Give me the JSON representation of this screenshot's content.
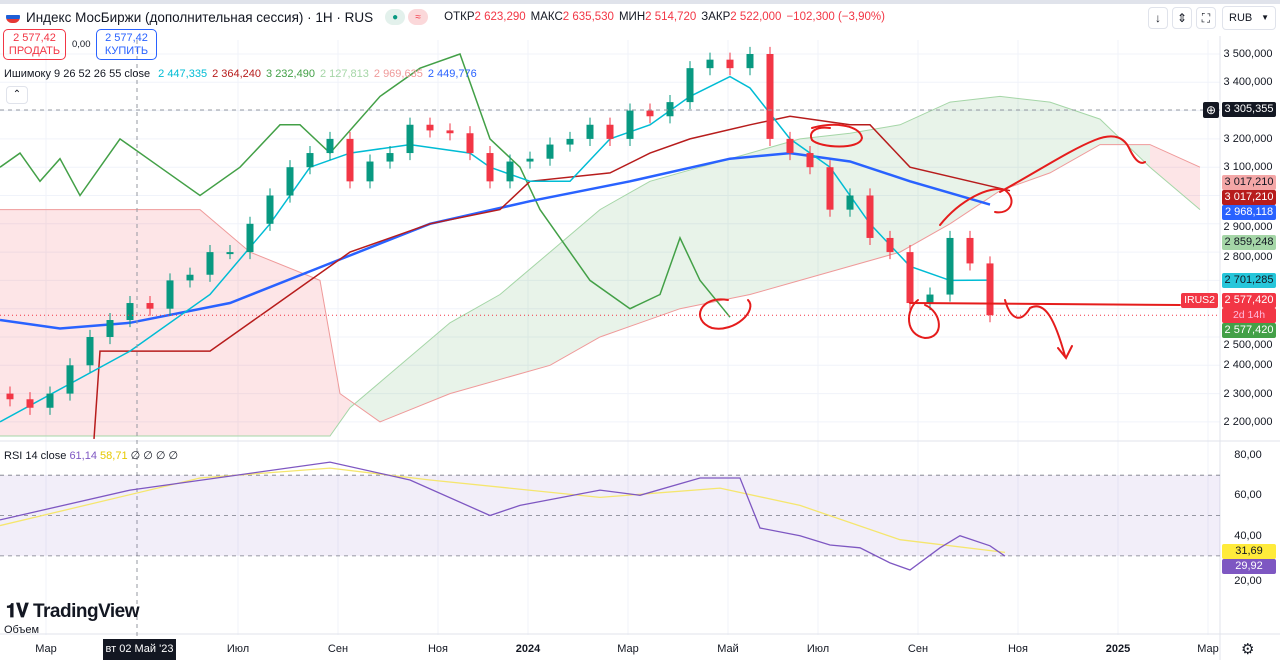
{
  "header": {
    "title": "Индекс МосБиржи (дополнительная сессия) · 1H · RUS",
    "ohlc": [
      {
        "label": "ОТКР",
        "value": "2 623,290"
      },
      {
        "label": "МАКС",
        "value": "2 635,530"
      },
      {
        "label": "МИН",
        "value": "2 514,720"
      },
      {
        "label": "ЗАКР",
        "value": "2 522,000"
      }
    ],
    "change": "−102,300 (−3,90%)",
    "sell_price": "2 577,42",
    "sell_label": "ПРОДАТЬ",
    "spread": "0,00",
    "buy_price": "2 577,42",
    "buy_label": "КУПИТЬ",
    "currency": "RUB"
  },
  "legend": {
    "name": "Ишимоку 9 26 52 26 55 close",
    "values": [
      {
        "v": "2 447,335",
        "color": "#00bcd4"
      },
      {
        "v": "2 364,240",
        "color": "#b71c1c"
      },
      {
        "v": "3 232,490",
        "color": "#43a047"
      },
      {
        "v": "2 127,813",
        "color": "#a5d6a7"
      },
      {
        "v": "2 969,635",
        "color": "#ef9a9a"
      },
      {
        "v": "2 449,776",
        "color": "#2962ff"
      }
    ]
  },
  "rsi_legend": {
    "name": "RSI 14 close",
    "rsi": "61,14",
    "ma": "58,71",
    "rest": "∅ ∅ ∅ ∅"
  },
  "price_axis": {
    "ticks": [
      {
        "v": 3500,
        "t": "3 500,000"
      },
      {
        "v": 3400,
        "t": "3 400,000"
      },
      {
        "v": 3200,
        "t": "3 200,000"
      },
      {
        "v": 3100,
        "t": "3 100,000"
      },
      {
        "v": 2900,
        "t": "2 900,000"
      },
      {
        "v": 2800,
        "t": "2 800,000"
      },
      {
        "v": 2500,
        "t": "2 500,000"
      },
      {
        "v": 2400,
        "t": "2 400,000"
      },
      {
        "v": 2300,
        "t": "2 300,000"
      },
      {
        "v": 2200,
        "t": "2 200,000"
      }
    ],
    "crosshair": "3 305,355",
    "tags": [
      {
        "t": "3 017,210",
        "bg": "#f4a7a7",
        "fg": "#131722",
        "v": 3017,
        "off": -14
      },
      {
        "t": "3 017,210",
        "bg": "#b71c1c",
        "fg": "#ffffff",
        "v": 3017,
        "off": 1
      },
      {
        "t": "2 968,118",
        "bg": "#2962ff",
        "fg": "#ffffff",
        "v": 2968,
        "off": 0
      },
      {
        "t": "2 859,248",
        "bg": "#a5d6a7",
        "fg": "#131722",
        "v": 2859,
        "off": 0
      },
      {
        "t": "2 701,285",
        "bg": "#26c6da",
        "fg": "#131722",
        "v": 2701,
        "off": 0
      },
      {
        "t": "2 577,420",
        "bg": "#f23645",
        "fg": "#ffffff",
        "v": 2577,
        "off": -3
      },
      {
        "t": "2 577,420",
        "bg": "#43a047",
        "fg": "#ffffff",
        "v": 2577,
        "off": 24
      }
    ],
    "countdown": "2d 14h",
    "symbol_tag": "IRUS2"
  },
  "rsi_axis": {
    "ticks": [
      {
        "v": 80,
        "t": "80,00"
      },
      {
        "v": 60,
        "t": "60,00"
      },
      {
        "v": 40,
        "t": "40,00"
      },
      {
        "v": 20,
        "t": "20,00"
      }
    ],
    "tags": [
      {
        "t": "31,69",
        "bg": "#ffeb3b",
        "fg": "#131722",
        "v": 31.69
      },
      {
        "t": "29,92",
        "bg": "#7e57c2",
        "fg": "#ffffff",
        "v": 29.92
      }
    ]
  },
  "time_axis": {
    "labels": [
      {
        "t": "Мар",
        "b": 1.8
      },
      {
        "t": "Июл",
        "b": 11.4
      },
      {
        "t": "Сен",
        "b": 16.4
      },
      {
        "t": "Ноя",
        "b": 21.4
      },
      {
        "t": "2024",
        "b": 25.9
      },
      {
        "t": "Мар",
        "b": 30.9
      },
      {
        "t": "Май",
        "b": 35.9
      },
      {
        "t": "Июл",
        "b": 40.4
      },
      {
        "t": "Сен",
        "b": 45.4
      },
      {
        "t": "Ноя",
        "b": 50.4
      },
      {
        "t": "2025",
        "b": 55.4
      },
      {
        "t": "Мар",
        "b": 59.9
      }
    ],
    "crosshair": "вт 02 Май '23"
  },
  "watermark": "TradingView",
  "volume_label": "Объем",
  "chart_data": {
    "type": "candlestick",
    "price_range": [
      2150,
      3560
    ],
    "closes": [
      2280,
      2250,
      2300,
      2400,
      2500,
      2560,
      2620,
      2600,
      2700,
      2720,
      2800,
      2800,
      2900,
      3000,
      3100,
      3150,
      3200,
      3050,
      3120,
      3150,
      3250,
      3230,
      3220,
      3150,
      3050,
      3120,
      3130,
      3180,
      3200,
      3250,
      3200,
      3300,
      3280,
      3330,
      3450,
      3480,
      3450,
      3500,
      3200,
      3150,
      3100,
      2950,
      3000,
      2850,
      2800,
      2620,
      2650,
      2850,
      2760,
      2577
    ],
    "first_open": 2300,
    "tenkan": [
      [
        -0.5,
        2200
      ],
      [
        6,
        2450
      ],
      [
        10,
        2650
      ],
      [
        13,
        2900
      ],
      [
        15,
        3100
      ],
      [
        17,
        3150
      ],
      [
        20,
        3180
      ],
      [
        23,
        3150
      ],
      [
        24,
        3100
      ],
      [
        26,
        3050
      ],
      [
        28,
        3050
      ],
      [
        30,
        3200
      ],
      [
        32,
        3250
      ],
      [
        34,
        3350
      ],
      [
        36,
        3420
      ],
      [
        37,
        3380
      ],
      [
        39,
        3200
      ],
      [
        41,
        3100
      ],
      [
        43,
        2900
      ],
      [
        45,
        2750
      ],
      [
        47,
        2700
      ],
      [
        49,
        2701
      ]
    ],
    "kijun": [
      [
        4.2,
        2140
      ],
      [
        4.5,
        2450
      ],
      [
        10,
        2450
      ],
      [
        13,
        2600
      ],
      [
        17,
        2800
      ],
      [
        21,
        2900
      ],
      [
        24.5,
        2950
      ],
      [
        26,
        3050
      ],
      [
        30,
        3080
      ],
      [
        32,
        3150
      ],
      [
        34,
        3200
      ],
      [
        37,
        3250
      ],
      [
        39,
        3280
      ],
      [
        42,
        3250
      ],
      [
        43,
        3250
      ],
      [
        45,
        3100
      ],
      [
        50,
        3017
      ]
    ],
    "ma": [
      [
        -0.5,
        2560
      ],
      [
        2.5,
        2530
      ],
      [
        6,
        2550
      ],
      [
        11,
        2620
      ],
      [
        16,
        2760
      ],
      [
        21,
        2900
      ],
      [
        26,
        2980
      ],
      [
        31,
        3050
      ],
      [
        36,
        3130
      ],
      [
        39,
        3150
      ],
      [
        42,
        3120
      ],
      [
        45,
        3050
      ],
      [
        49,
        2968
      ]
    ],
    "lagging": [
      [
        -0.5,
        3100
      ],
      [
        0.5,
        3150
      ],
      [
        1.5,
        3050
      ],
      [
        2.5,
        3130
      ],
      [
        3.5,
        3000
      ],
      [
        4.5,
        3100
      ],
      [
        5.5,
        3200
      ],
      [
        7.5,
        3100
      ],
      [
        9.5,
        3000
      ],
      [
        11.5,
        3100
      ],
      [
        13.5,
        3250
      ],
      [
        14.5,
        3250
      ],
      [
        16,
        3150
      ],
      [
        18.5,
        3350
      ],
      [
        20.5,
        3450
      ],
      [
        22.5,
        3500
      ],
      [
        24,
        3200
      ],
      [
        25.5,
        3100
      ],
      [
        26.5,
        2950
      ],
      [
        28,
        2800
      ],
      [
        29,
        2700
      ],
      [
        31,
        2600
      ],
      [
        32.5,
        2650
      ],
      [
        33.5,
        2850
      ],
      [
        34.5,
        2700
      ],
      [
        36,
        2570
      ]
    ],
    "span_a": [
      [
        -0.5,
        2150
      ],
      [
        16,
        2150
      ],
      [
        17,
        2250
      ],
      [
        19.5,
        2400
      ],
      [
        22,
        2550
      ],
      [
        24.5,
        2650
      ],
      [
        27,
        2800
      ],
      [
        29.5,
        2950
      ],
      [
        32,
        3050
      ],
      [
        34.5,
        3100
      ],
      [
        37,
        3150
      ],
      [
        39.5,
        3200
      ],
      [
        42,
        3220
      ],
      [
        44.5,
        3250
      ],
      [
        47,
        3330
      ],
      [
        49.5,
        3350
      ],
      [
        52,
        3330
      ],
      [
        54.5,
        3270
      ],
      [
        57,
        3100
      ],
      [
        59.5,
        2950
      ]
    ],
    "span_b": [
      [
        -0.5,
        2950
      ],
      [
        9.5,
        2950
      ],
      [
        12,
        2800
      ],
      [
        15.5,
        2700
      ],
      [
        16.5,
        2300
      ],
      [
        18.5,
        2200
      ],
      [
        22,
        2300
      ],
      [
        27,
        2400
      ],
      [
        29.5,
        2500
      ],
      [
        33.5,
        2600
      ],
      [
        37,
        2650
      ],
      [
        39.5,
        2700
      ],
      [
        44.5,
        2800
      ],
      [
        47,
        2900
      ],
      [
        49.5,
        3017
      ],
      [
        52,
        3080
      ],
      [
        54.5,
        3180
      ],
      [
        57,
        3180
      ],
      [
        59.5,
        3100
      ]
    ],
    "rsi": {
      "range": [
        20,
        80
      ],
      "bands": [
        30,
        50,
        70
      ],
      "rsi": [
        [
          -0.5,
          47.8
        ],
        [
          6,
          62.6
        ],
        [
          16,
          76.5
        ],
        [
          20,
          67.6
        ],
        [
          24,
          50
        ],
        [
          25.5,
          55
        ],
        [
          29.5,
          62.6
        ],
        [
          31.5,
          60
        ],
        [
          34.5,
          68.6
        ],
        [
          36.5,
          68.6
        ],
        [
          37.5,
          43.8
        ],
        [
          39.5,
          40
        ],
        [
          41,
          35.4
        ],
        [
          42.5,
          34
        ],
        [
          44,
          26.5
        ],
        [
          45,
          23
        ],
        [
          46.5,
          34
        ],
        [
          47.5,
          40
        ],
        [
          49,
          35
        ],
        [
          49.75,
          29.9
        ]
      ],
      "ma": [
        [
          -0.5,
          45
        ],
        [
          9.5,
          68.6
        ],
        [
          16,
          73.5
        ],
        [
          21,
          67.6
        ],
        [
          29.5,
          59
        ],
        [
          35.5,
          63.6
        ],
        [
          39.5,
          55
        ],
        [
          44.5,
          38
        ],
        [
          49.75,
          31.7
        ]
      ]
    }
  }
}
